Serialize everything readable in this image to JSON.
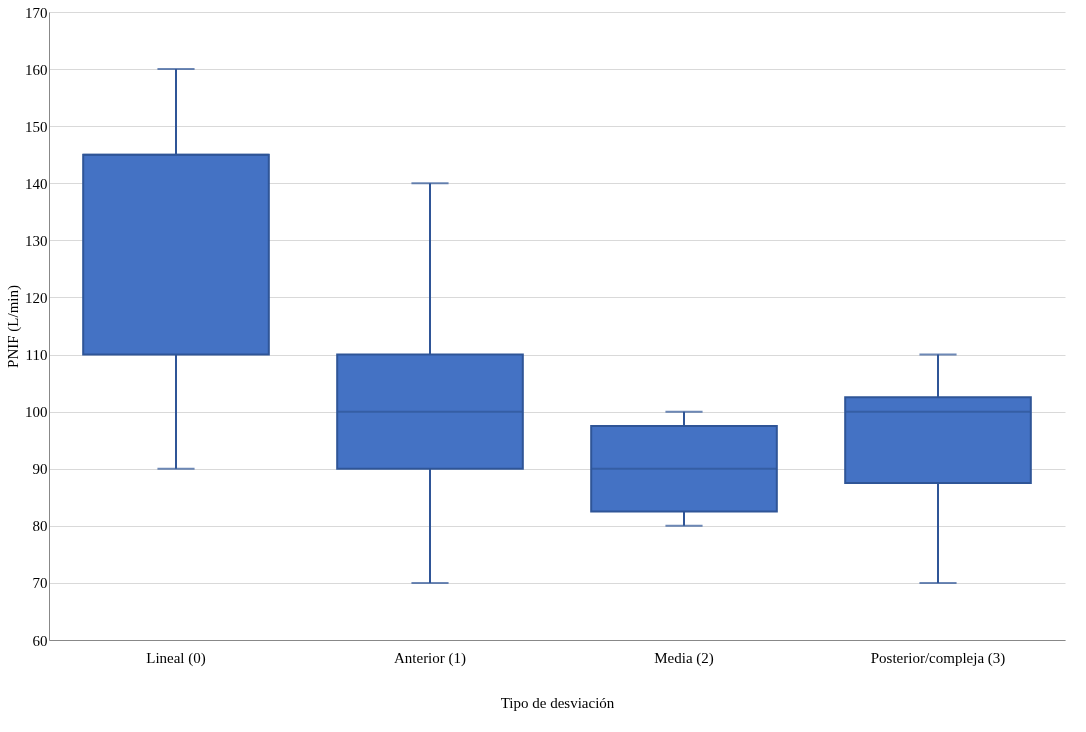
{
  "chart_data": {
    "type": "box",
    "xlabel": "Tipo de desviación",
    "ylabel": "PNIF (L/min)",
    "categories": [
      "Lineal (0)",
      "Anterior (1)",
      "Media (2)",
      "Posterior/compleja (3)"
    ],
    "series": [
      {
        "color": "#4472c4",
        "boxes": [
          {
            "low": 90,
            "q1": 110,
            "median": 145,
            "q3": 145,
            "high": 160
          },
          {
            "low": 70,
            "q1": 90,
            "median": 100,
            "q3": 110,
            "high": 140
          },
          {
            "low": 80,
            "q1": 82.5,
            "median": 90,
            "q3": 97.5,
            "high": 100
          },
          {
            "low": 70,
            "q1": 87.5,
            "median": 100,
            "q3": 102.5,
            "high": 110
          }
        ]
      }
    ],
    "ylim": [
      60,
      170
    ],
    "yticks": [
      60,
      70,
      80,
      90,
      100,
      110,
      120,
      130,
      140,
      150,
      160,
      170
    ],
    "grid": "y"
  }
}
